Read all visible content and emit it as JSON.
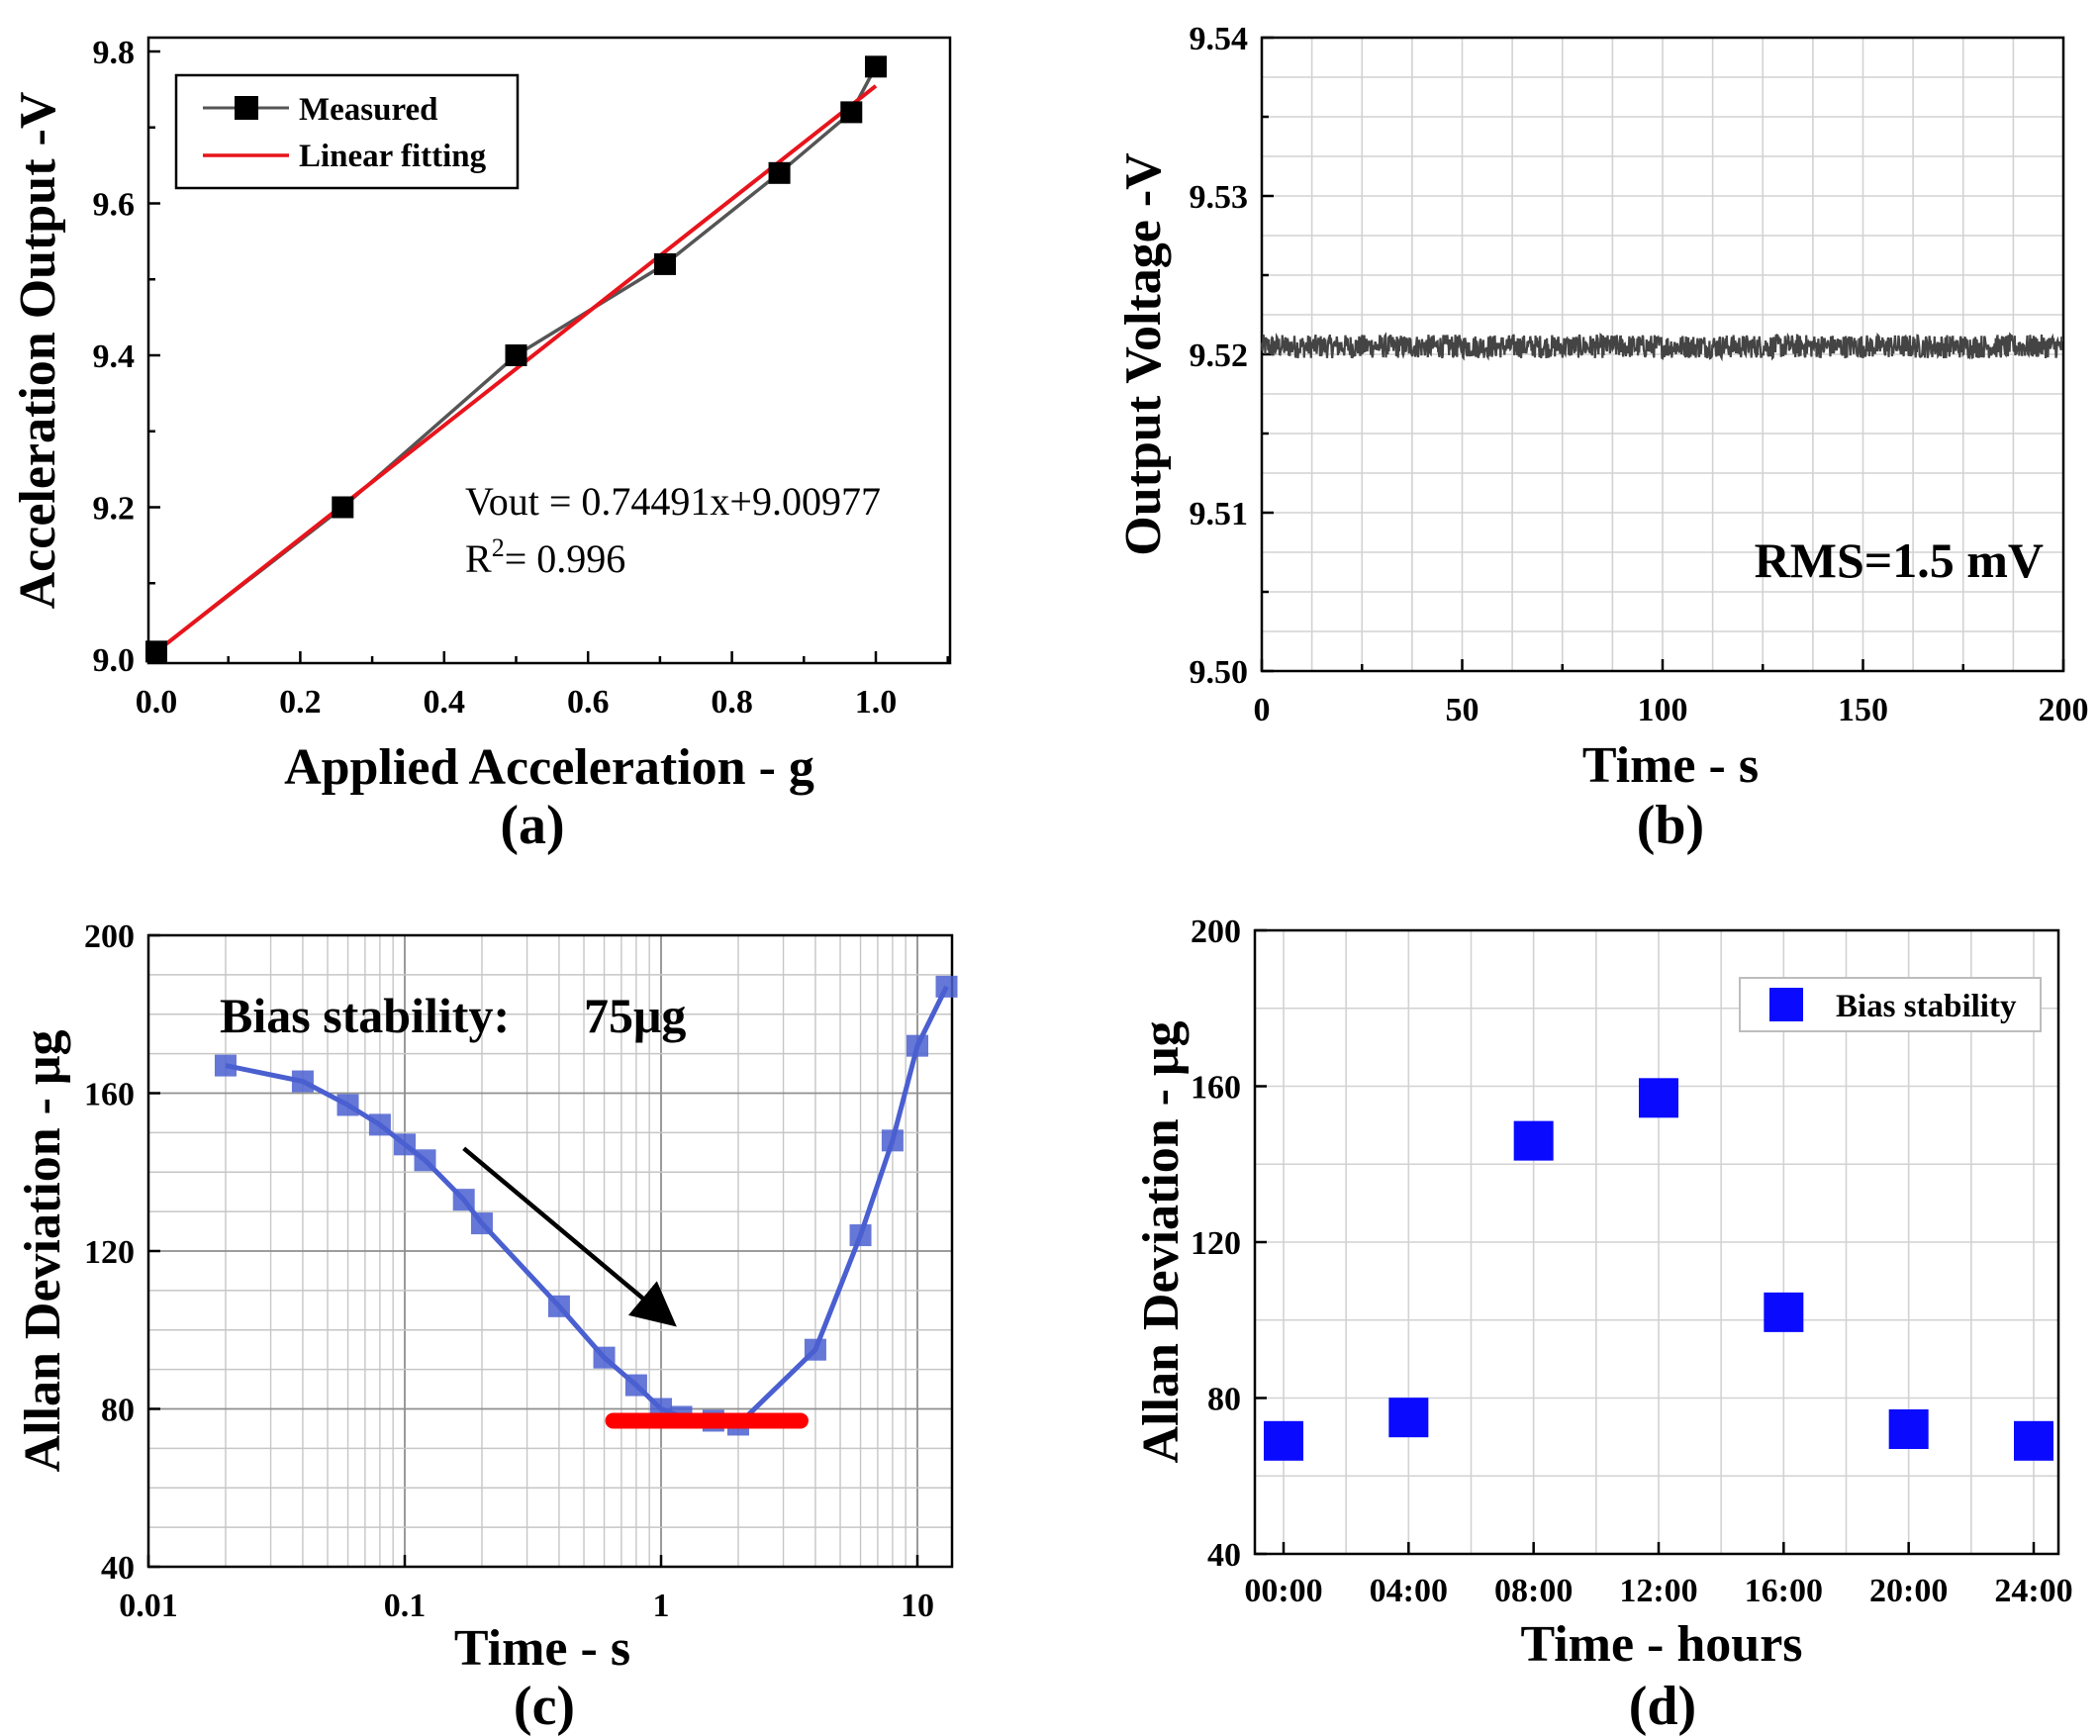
{
  "chart_data": [
    {
      "id": "a",
      "type": "line",
      "caption": "(a)",
      "xlabel": "Applied Acceleration - g",
      "ylabel": "Acceleration Output -V",
      "xlim": [
        0.0,
        1.1
      ],
      "ylim": [
        9.0,
        9.8
      ],
      "xticks": [
        0.0,
        0.2,
        0.4,
        0.6,
        0.8,
        1.0
      ],
      "xtick_labels": [
        "0.0",
        "0.2",
        "0.4",
        "0.6",
        "0.8",
        "1.0"
      ],
      "yticks": [
        9.0,
        9.2,
        9.4,
        9.6,
        9.8
      ],
      "ytick_labels": [
        "9.0",
        "9.2",
        "9.4",
        "9.6",
        "9.8"
      ],
      "series": [
        {
          "name": "Measured",
          "color": "#555555",
          "marker_color": "#000000",
          "x": [
            0.0,
            0.259,
            0.5,
            0.707,
            0.866,
            0.966,
            1.0
          ],
          "y": [
            9.01,
            9.2,
            9.4,
            9.52,
            9.64,
            9.72,
            9.78
          ]
        },
        {
          "name": "Linear fitting",
          "color": "#e8141c",
          "slope": 0.74491,
          "intercept": 9.00977,
          "x_range": [
            0.0,
            1.0
          ]
        }
      ],
      "legend": {
        "position": "top-left",
        "entries": [
          "Measured",
          "Linear fitting"
        ]
      },
      "annotations": {
        "equation": "Vout = 0.74491x+9.00977",
        "r2_prefix": "R",
        "r2_sup": "2",
        "r2_rest": "= 0.996"
      }
    },
    {
      "id": "b",
      "type": "line",
      "caption": "(b)",
      "xlabel": "Time - s",
      "ylabel": "Output Voltage -V",
      "xlim": [
        0,
        200
      ],
      "ylim": [
        9.5,
        9.54
      ],
      "xticks": [
        0,
        50,
        100,
        150,
        200
      ],
      "xtick_labels": [
        "0",
        "50",
        "100",
        "150",
        "200"
      ],
      "yticks": [
        9.5,
        9.51,
        9.52,
        9.53,
        9.54
      ],
      "ytick_labels": [
        "9.50",
        "9.51",
        "9.52",
        "9.53",
        "9.54"
      ],
      "grid": true,
      "series": [
        {
          "name": "Output voltage",
          "color": "#444444",
          "mean": 9.5205,
          "noise_amplitude": 0.00075,
          "x_range": [
            0,
            200
          ]
        }
      ],
      "annotations": {
        "rms": "RMS=1.5 mV"
      }
    },
    {
      "id": "c",
      "type": "line",
      "caption": "(c)",
      "xlabel": "Time - s",
      "ylabel": "Allan Deviation - μg",
      "xscale": "log",
      "xlim": [
        0.01,
        14
      ],
      "ylim": [
        40,
        200
      ],
      "xticks": [
        0.01,
        0.1,
        1,
        10
      ],
      "xtick_labels": [
        "0.01",
        "0.1",
        "1",
        "10"
      ],
      "yticks": [
        40,
        80,
        120,
        160,
        200
      ],
      "ytick_labels": [
        "40",
        "80",
        "120",
        "160",
        "200"
      ],
      "grid": true,
      "series": [
        {
          "name": "Allan deviation",
          "color": "#4a5fd0",
          "x": [
            0.02,
            0.04,
            0.06,
            0.08,
            0.1,
            0.12,
            0.17,
            0.2,
            0.4,
            0.6,
            0.8,
            1.0,
            1.2,
            1.6,
            2.0,
            4.0,
            6.0,
            8.0,
            10.0,
            13.0
          ],
          "y": [
            167,
            163,
            157,
            152,
            147,
            143,
            133,
            127,
            106,
            93,
            86,
            80,
            78,
            77,
            76,
            95,
            124,
            148,
            172,
            187
          ]
        }
      ],
      "bias_line": {
        "color": "#ff0000",
        "x": [
          0.65,
          3.5
        ],
        "y": 77
      },
      "arrow": {
        "from": [
          0.17,
          146
        ],
        "to": [
          1.05,
          103
        ]
      },
      "annotations": {
        "bias_label": "Bias stability:",
        "bias_value": "75μg"
      }
    },
    {
      "id": "d",
      "type": "scatter",
      "caption": "(d)",
      "xlabel": "Time - hours",
      "ylabel": "Allan Deviation - μg",
      "xlim": [
        -0.5,
        25.5
      ],
      "ylim": [
        40,
        200
      ],
      "xticks": [
        0,
        4,
        8,
        12,
        16,
        20,
        24
      ],
      "xtick_labels": [
        "00:00",
        "04:00",
        "08:00",
        "12:00",
        "16:00",
        "20:00",
        "24:00"
      ],
      "yticks": [
        40,
        80,
        120,
        160,
        200
      ],
      "ytick_labels": [
        "40",
        "80",
        "120",
        "160",
        "200"
      ],
      "grid": true,
      "series": [
        {
          "name": "Bias stability",
          "color": "#0a0aff",
          "x": [
            0,
            4,
            8,
            12,
            16,
            20,
            24
          ],
          "y": [
            69,
            75,
            146,
            157,
            102,
            72,
            69
          ]
        }
      ],
      "legend": {
        "position": "top-right",
        "entries": [
          "Bias stability"
        ]
      }
    }
  ]
}
